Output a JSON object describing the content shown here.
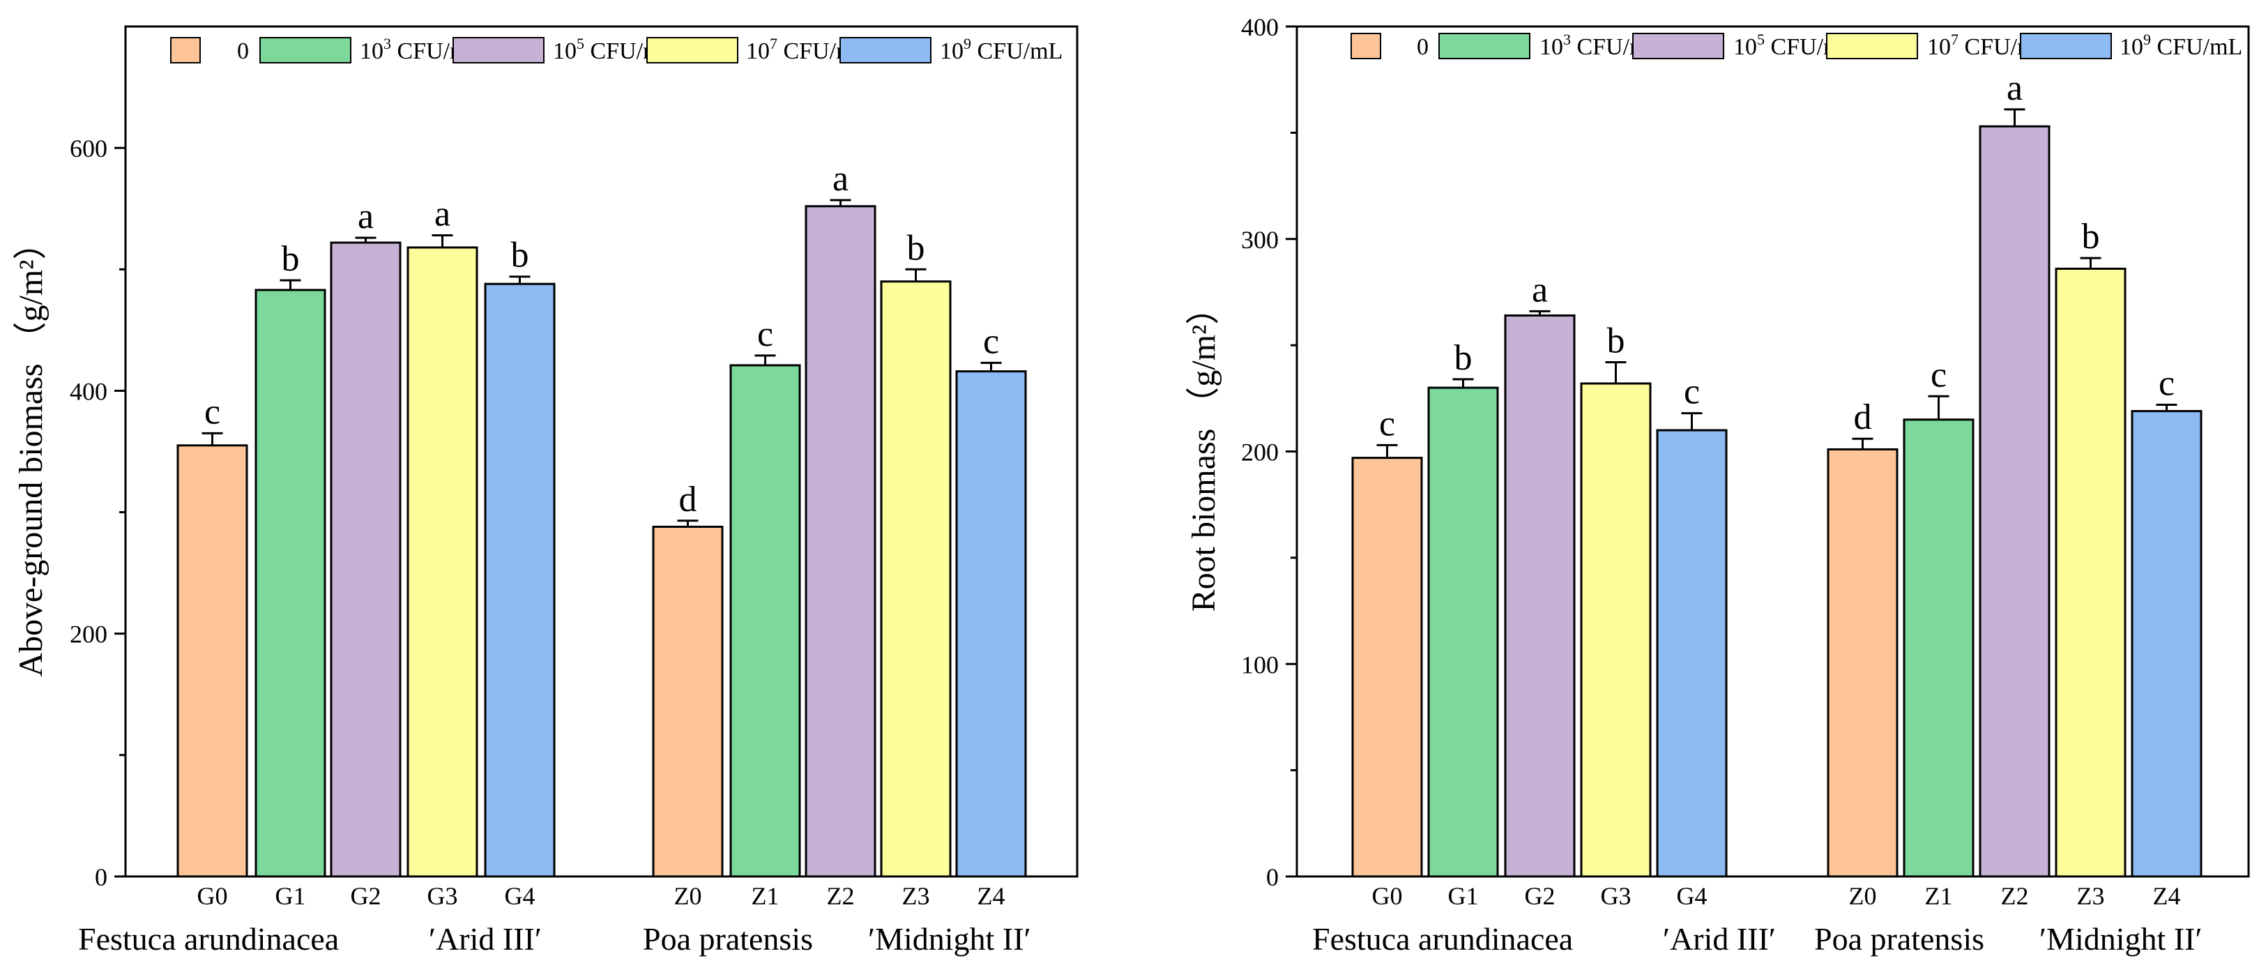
{
  "legend": {
    "entries": [
      {
        "base": "0",
        "sup": ""
      },
      {
        "base": "10",
        "sup": "3",
        "unit": " CFU/mL"
      },
      {
        "base": "10",
        "sup": "5",
        "unit": " CFU/mL"
      },
      {
        "base": "10",
        "sup": "7",
        "unit": " CFU/mL"
      },
      {
        "base": "10",
        "sup": "9",
        "unit": " CFU/mL"
      }
    ],
    "colors": [
      "#FDC597",
      "#7DD99B",
      "#C7B2D6",
      "#FDFD9B",
      "#8DBAF3"
    ]
  },
  "chart_data": [
    {
      "type": "bar",
      "ylabel": "Above-ground biomass （g/m²）",
      "ylim": [
        0,
        700
      ],
      "yticks": [
        0,
        200,
        400,
        600
      ],
      "groups": [
        {
          "label": "Festuca arundinacea ′Arid III′",
          "label_parts": [
            "Festuca arundinacea",
            "′Arid III′"
          ],
          "categories": [
            "G0",
            "G1",
            "G2",
            "G3",
            "G4"
          ],
          "values": [
            355,
            483,
            522,
            518,
            488
          ],
          "errors": [
            10,
            8,
            4,
            10,
            6
          ],
          "letters": [
            "c",
            "b",
            "a",
            "a",
            "b"
          ]
        },
        {
          "label": "Poa pratensis ′Midnight II′",
          "label_parts": [
            "Poa pratensis",
            "′Midnight II′"
          ],
          "categories": [
            "Z0",
            "Z1",
            "Z2",
            "Z3",
            "Z4"
          ],
          "values": [
            288,
            421,
            552,
            490,
            416
          ],
          "errors": [
            5,
            8,
            5,
            10,
            7
          ],
          "letters": [
            "d",
            "c",
            "a",
            "b",
            "c"
          ]
        }
      ]
    },
    {
      "type": "bar",
      "ylabel": "Root biomass （g/m²）",
      "ylim": [
        0,
        400
      ],
      "yticks": [
        0,
        100,
        200,
        300,
        400
      ],
      "groups": [
        {
          "label": "Festuca arundinacea ′Arid III′",
          "label_parts": [
            "Festuca arundinacea",
            "′Arid III′"
          ],
          "categories": [
            "G0",
            "G1",
            "G2",
            "G3",
            "G4"
          ],
          "values": [
            197,
            230,
            264,
            232,
            210
          ],
          "errors": [
            6,
            4,
            2,
            10,
            8
          ],
          "letters": [
            "c",
            "b",
            "a",
            "b",
            "c"
          ]
        },
        {
          "label": "Poa pratensis ′Midnight II′",
          "label_parts": [
            "Poa pratensis",
            "′Midnight II′"
          ],
          "categories": [
            "Z0",
            "Z1",
            "Z2",
            "Z3",
            "Z4"
          ],
          "values": [
            201,
            215,
            353,
            286,
            219
          ],
          "errors": [
            5,
            11,
            8,
            5,
            3
          ],
          "letters": [
            "d",
            "c",
            "a",
            "b",
            "c"
          ]
        }
      ]
    }
  ]
}
